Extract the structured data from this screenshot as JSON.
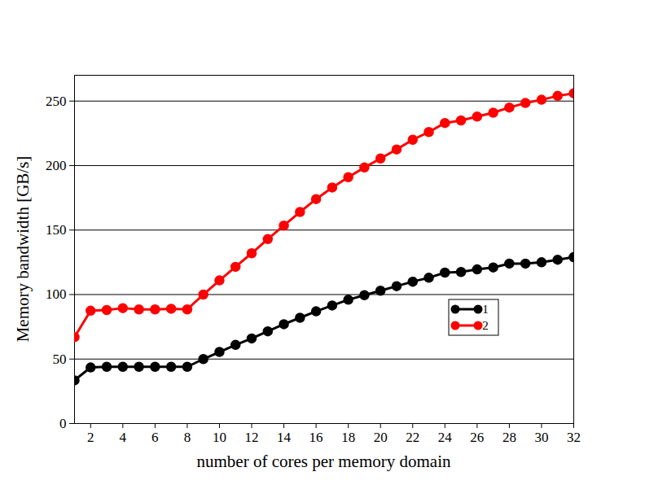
{
  "chart_data": {
    "type": "line",
    "xlabel": "number of cores per memory domain",
    "ylabel": "Memory bandwidth [GB/s]",
    "x": [
      1,
      2,
      3,
      4,
      5,
      6,
      7,
      8,
      9,
      10,
      11,
      12,
      13,
      14,
      15,
      16,
      17,
      18,
      19,
      20,
      21,
      22,
      23,
      24,
      25,
      26,
      27,
      28,
      29,
      30,
      31,
      32
    ],
    "xlim": [
      1,
      32
    ],
    "xticks": [
      2,
      4,
      6,
      8,
      10,
      12,
      14,
      16,
      18,
      20,
      22,
      24,
      26,
      28,
      30,
      32
    ],
    "ylim": [
      0,
      270
    ],
    "yticks": [
      0,
      50,
      100,
      150,
      200,
      250
    ],
    "grid": true,
    "legend": "right",
    "marker": "circle",
    "series": [
      {
        "name": "1",
        "color": "#000000",
        "values": [
          33.5,
          43.5,
          44,
          44,
          44,
          44,
          44,
          44,
          50,
          55.5,
          61,
          66,
          71.5,
          77,
          82,
          87,
          91.5,
          96,
          99.5,
          103,
          106.5,
          110,
          113,
          117,
          117.5,
          119.5,
          121,
          124,
          124,
          125,
          127,
          129
        ]
      },
      {
        "name": "2",
        "color": "#ff0000",
        "values": [
          67,
          87.5,
          88,
          89.5,
          88.5,
          88.5,
          89,
          88.5,
          100,
          111,
          121.5,
          132,
          143,
          153.5,
          164,
          174,
          183,
          191,
          198.5,
          205.5,
          212.5,
          220,
          226,
          233,
          235,
          238,
          241,
          245,
          248.5,
          251,
          254,
          256
        ]
      }
    ]
  }
}
